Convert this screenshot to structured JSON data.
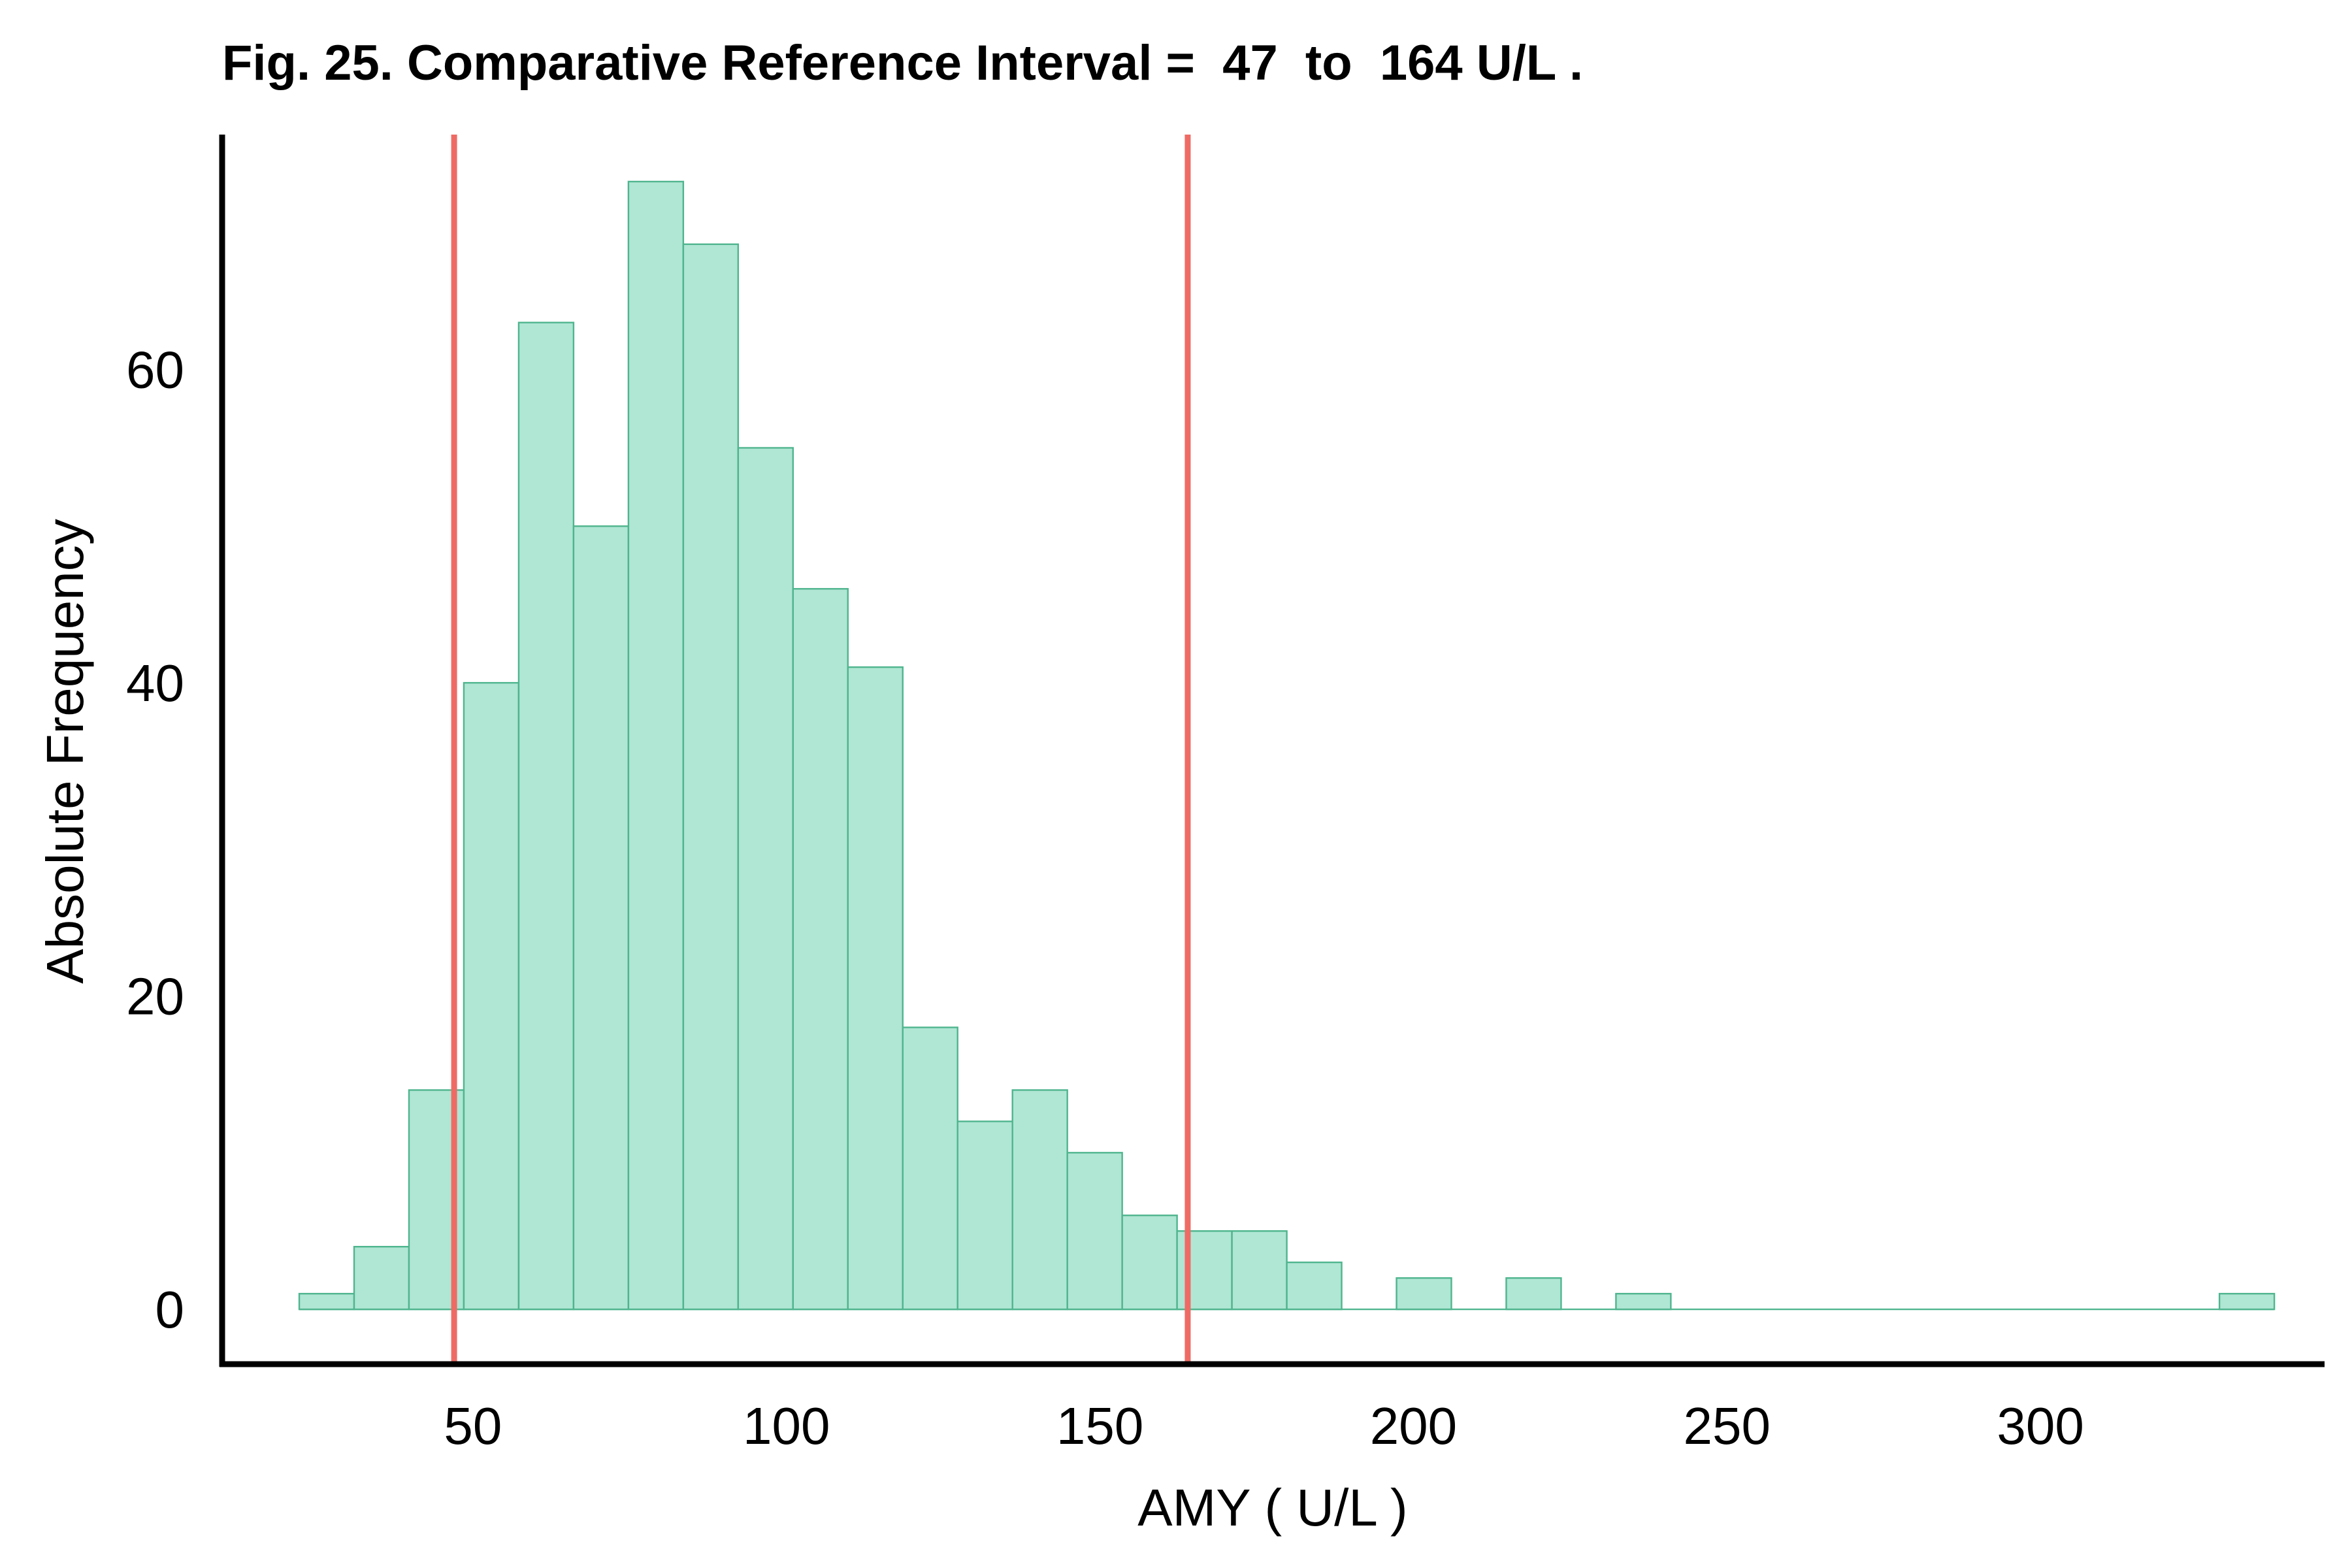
{
  "chart_data": {
    "type": "histogram",
    "title": "Fig. 25. Comparative Reference Interval =  47  to  164 U/L .",
    "xlabel": "AMY ( U/L )",
    "ylabel": "Absolute Frequency",
    "xlim": [
      10,
      345
    ],
    "ylim": [
      -3.5,
      75
    ],
    "x_ticks": [
      50,
      100,
      150,
      200,
      250,
      300
    ],
    "y_ticks": [
      0,
      20,
      40,
      60
    ],
    "bin_width": 8.75,
    "bin_start": 22.3,
    "counts": [
      1,
      4,
      14,
      40,
      63,
      50,
      72,
      68,
      55,
      46,
      41,
      18,
      12,
      14,
      10,
      6,
      5,
      5,
      3,
      0,
      2,
      0,
      2,
      0,
      1,
      0,
      0,
      0,
      0,
      0,
      0,
      0,
      0,
      0,
      0,
      1
    ],
    "reference_lines": [
      {
        "value": 47,
        "color": "#ee6b65"
      },
      {
        "value": 164,
        "color": "#ee6b65"
      }
    ],
    "colors": {
      "bar_fill": "#b0e6d4",
      "bar_edge": "#4fb58e",
      "reference_line": "#ee6b65"
    },
    "grid": false,
    "legend": "none"
  }
}
